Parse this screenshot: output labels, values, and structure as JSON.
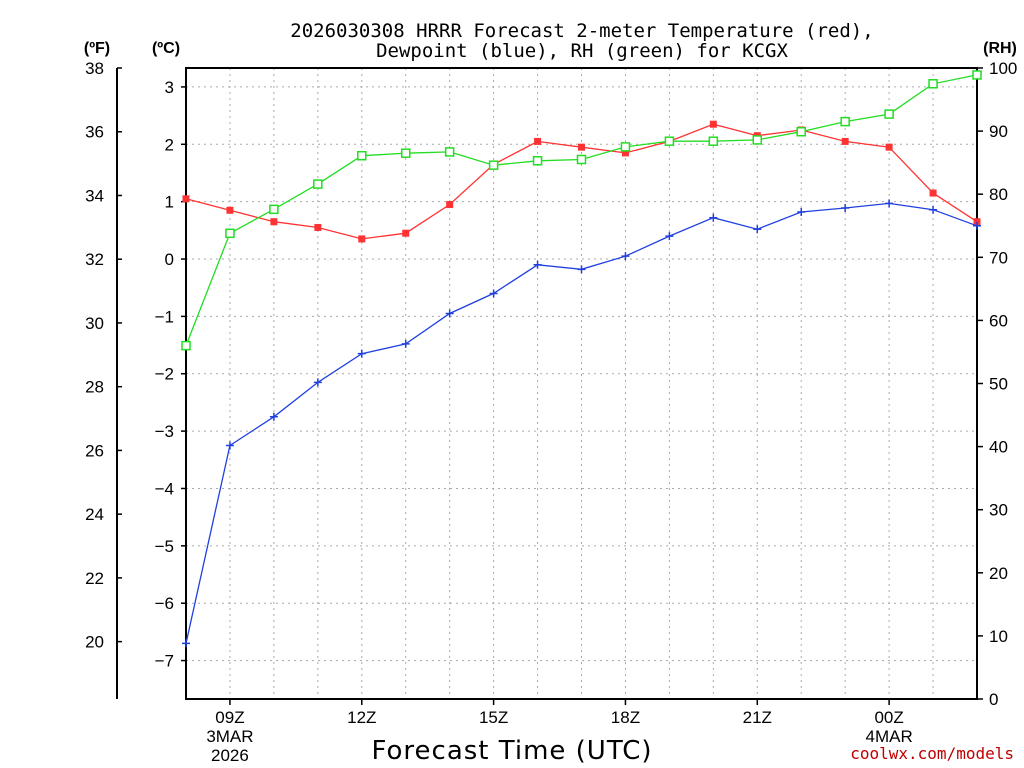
{
  "chart_data": {
    "type": "line",
    "title_line1": "2026030308 HRRR Forecast 2-meter Temperature (red),",
    "title_line2": "Dewpoint (blue), RH (green) for KCGX",
    "xlabel": "Forecast Time (UTC)",
    "credit": "coolwx.com/models",
    "units": {
      "fahrenheit": "(ºF)",
      "celsius": "(ºC)",
      "rh": "(RH)"
    },
    "x_range": [
      8,
      26
    ],
    "x_ticks": [
      {
        "x": 9,
        "line1": "09Z",
        "line2": "3MAR",
        "line3": "2026"
      },
      {
        "x": 12,
        "line1": "12Z",
        "line2": "",
        "line3": ""
      },
      {
        "x": 15,
        "line1": "15Z",
        "line2": "",
        "line3": ""
      },
      {
        "x": 18,
        "line1": "18Z",
        "line2": "",
        "line3": ""
      },
      {
        "x": 21,
        "line1": "21Z",
        "line2": "",
        "line3": ""
      },
      {
        "x": 24,
        "line1": "00Z",
        "line2": "4MAR",
        "line3": ""
      }
    ],
    "fahrenheit_axis": {
      "range": [
        18.2,
        38
      ],
      "ticks": [
        "20",
        "22",
        "24",
        "26",
        "28",
        "30",
        "32",
        "34",
        "36",
        "38"
      ]
    },
    "celsius_axis": {
      "range": [
        -7.67,
        3.33
      ],
      "ticks": [
        "−7",
        "−6",
        "−5",
        "−4",
        "−3",
        "−2",
        "−1",
        "0",
        "1",
        "2",
        "3"
      ]
    },
    "rh_axis": {
      "range": [
        0,
        100
      ],
      "ticks": [
        "0",
        "10",
        "20",
        "30",
        "40",
        "50",
        "60",
        "70",
        "80",
        "90",
        "100"
      ]
    },
    "series": [
      {
        "name": "Temperature",
        "color": "#ff3333",
        "marker": "filled-square",
        "axis": "celsius",
        "x": [
          8,
          9,
          10,
          11,
          12,
          13,
          14,
          15,
          16,
          17,
          18,
          19,
          20,
          21,
          22,
          23,
          24,
          25,
          26
        ],
        "values": [
          1.05,
          0.85,
          0.65,
          0.55,
          0.35,
          0.45,
          0.95,
          1.65,
          2.05,
          1.95,
          1.85,
          2.05,
          2.35,
          2.15,
          2.25,
          2.05,
          1.95,
          1.15,
          0.65
        ]
      },
      {
        "name": "Dewpoint",
        "color": "#2040e0",
        "marker": "plus",
        "axis": "celsius",
        "x": [
          8,
          9,
          10,
          11,
          12,
          13,
          14,
          15,
          16,
          17,
          18,
          19,
          20,
          21,
          22,
          23,
          24,
          25,
          26
        ],
        "values": [
          -6.7,
          -3.25,
          -2.75,
          -2.15,
          -1.65,
          -1.48,
          -0.95,
          -0.6,
          -0.1,
          -0.18,
          0.05,
          0.4,
          0.72,
          0.52,
          0.82,
          0.89,
          0.97,
          0.86,
          0.58
        ]
      },
      {
        "name": "RH",
        "color": "#22dd22",
        "marker": "open-square",
        "axis": "rh",
        "x": [
          8,
          9,
          10,
          11,
          12,
          13,
          14,
          15,
          16,
          17,
          18,
          19,
          20,
          21,
          22,
          23,
          24,
          25,
          26
        ],
        "values": [
          56,
          73.8,
          77.6,
          81.6,
          86.1,
          86.5,
          86.7,
          84.6,
          85.3,
          85.5,
          87.5,
          88.4,
          88.4,
          88.6,
          89.9,
          91.5,
          92.7,
          97.5,
          98.9
        ]
      }
    ]
  }
}
